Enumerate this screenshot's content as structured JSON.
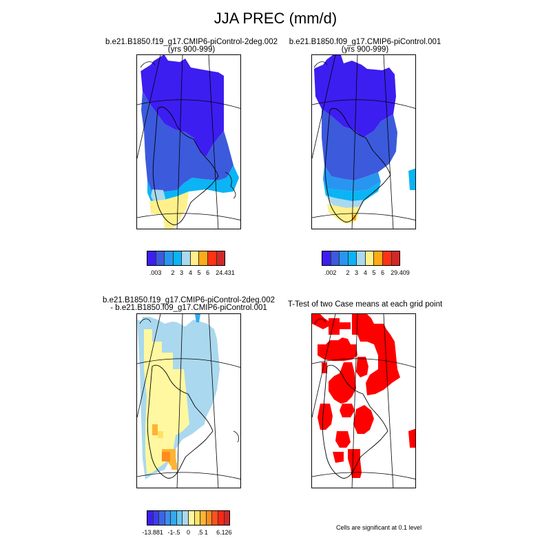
{
  "title": "JJA PREC (mm/d)",
  "panels": {
    "p1": {
      "line1": "b.e21.B1850.f19_g17.CMIP6-piControl-2deg.002",
      "line2": "(yrs 900-999)"
    },
    "p2": {
      "line1": "b.e21.B1850.f09_g17.CMIP6-piControl.001",
      "line2": "(yrs 900-999)"
    },
    "p3": {
      "line1": "b.e21.B1850.f19_g17.CMIP6-piControl-2deg.002",
      "line2": "- b.e21.B1850.f09_g17.CMIP6-piControl.001"
    },
    "p4": {
      "line1": "T-Test of two Case means at each grid point"
    }
  },
  "colorbars": {
    "cb1": {
      "colors": [
        "#3c1ef0",
        "#3c5adc",
        "#2896f0",
        "#0ab4f5",
        "#aad8ee",
        "#fff08c",
        "#ffaa14",
        "#ff3214",
        "#d22828"
      ],
      "labels": [
        ".003",
        "2",
        "3",
        "4",
        "5",
        "6",
        "24.431"
      ]
    },
    "cb2": {
      "colors": [
        "#3c1ef0",
        "#3c5adc",
        "#2896f0",
        "#0ab4f5",
        "#aad8ee",
        "#fff08c",
        "#ffaa14",
        "#ff3214",
        "#d22828"
      ],
      "labels": [
        ".002",
        "2",
        "3",
        "4",
        "5",
        "6",
        "29.409"
      ]
    },
    "cb3": {
      "colors": [
        "#3c1ef0",
        "#3c3cf0",
        "#3c64e6",
        "#3c8cf0",
        "#32aaf0",
        "#64c8f0",
        "#aad8ee",
        "#fff8a0",
        "#ffe164",
        "#ffb432",
        "#ff8c1e",
        "#ff501e",
        "#ff2814",
        "#d22828"
      ],
      "labels": [
        "-13.881",
        "-1",
        "-.5",
        "0",
        ".5",
        "1",
        "6.126"
      ]
    }
  },
  "significance_note": "Cells are significant at 0.1 level"
}
